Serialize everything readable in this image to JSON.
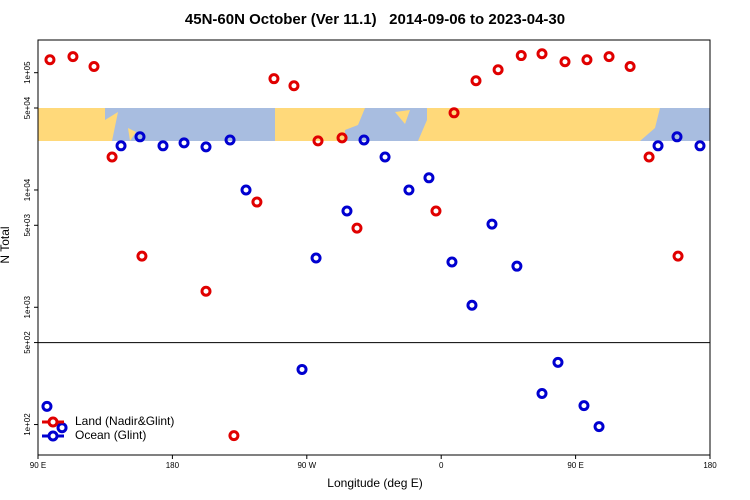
{
  "chart_data": {
    "type": "scatter",
    "title": "45N-60N October (Ver 11.1)   2014-09-06 to 2023-04-30",
    "xlabel": "Longitude (deg E)",
    "ylabel": "N Total",
    "log_y": true,
    "legend": "bottom-left",
    "xlim": [
      90,
      540
    ],
    "xticks": [
      {
        "value": 90,
        "label": "90 E"
      },
      180,
      {
        "value": 270,
        "label": "90 W"
      },
      {
        "value": 360,
        "label": "0"
      },
      {
        "value": 450,
        "label": "90 E"
      },
      {
        "value": 540,
        "label": "180"
      }
    ],
    "ylim": [
      55,
      190000
    ],
    "yticks": [
      {
        "value": 100000,
        "label": "1e+05"
      },
      {
        "value": 50000,
        "label": "5e+04"
      },
      {
        "value": 10000,
        "label": "1e+04"
      },
      {
        "value": 5000,
        "label": "5e+03"
      },
      {
        "value": 1000,
        "label": "1e+03"
      },
      {
        "value": 500,
        "label": "5e+02"
      },
      {
        "value": 100,
        "label": "1e+02"
      }
    ],
    "series": [
      {
        "name": "Land (Nadir&Glint)",
        "color": "#e00000",
        "x": [
          98,
          113.4,
          127.5,
          139.6,
          159.6,
          202.5,
          221.2,
          236.6,
          248,
          261.4,
          277.5,
          293.6,
          303.6,
          356.5,
          368.6,
          383.3,
          398.1,
          413.6,
          427.5,
          442.9,
          457.6,
          472.4,
          486.5,
          499.2,
          518.6
        ],
        "values": [
          129000,
          137000,
          113000,
          19100,
          2730,
          1370,
          80.5,
          7890,
          88900,
          77400,
          26200,
          27800,
          4730,
          6620,
          45500,
          85400,
          106000,
          140000,
          145000,
          124000,
          129000,
          137000,
          113000,
          19100,
          2730
        ]
      },
      {
        "name": "Ocean (Glint)",
        "color": "#0000d0",
        "x": [
          96,
          106.1,
          145.6,
          158.3,
          173.7,
          187.8,
          202.5,
          218.6,
          229.3,
          276.2,
          266.8,
          296.9,
          308.3,
          322.4,
          338.4,
          351.8,
          367.2,
          380.6,
          394,
          410.7,
          427.5,
          438.2,
          455.6,
          465.7,
          505.2,
          517.9,
          533.3
        ],
        "values": [
          143,
          94,
          23800,
          28400,
          23800,
          25200,
          23300,
          26700,
          10000,
          2630,
          295,
          6620,
          26700,
          19100,
          10000,
          12700,
          2430,
          1040,
          5120,
          2240,
          184,
          339,
          145,
          96,
          23800,
          28400,
          23800
        ]
      }
    ]
  }
}
